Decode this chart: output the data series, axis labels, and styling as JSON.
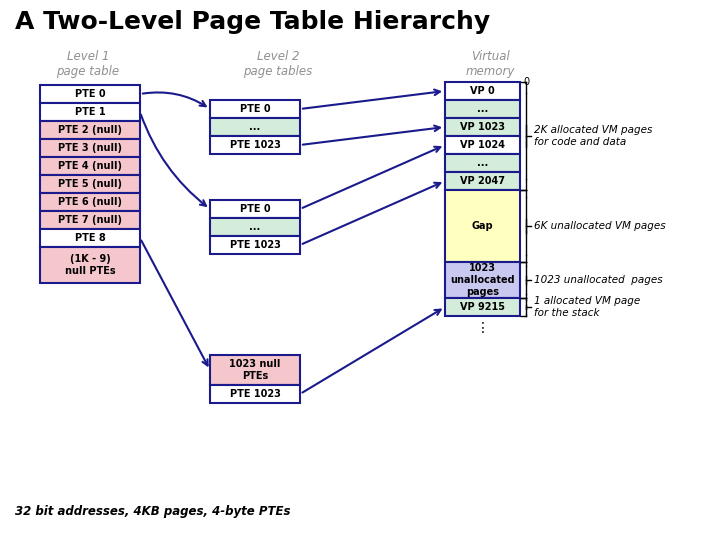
{
  "title": "A Two-Level Page Table Hierarchy",
  "subtitle_l1": "Level 1\npage table",
  "subtitle_l2": "Level 2\npage tables",
  "subtitle_vm": "Virtual\nmemory",
  "footer": "32 bit addresses, 4KB pages, 4-byte PTEs",
  "bg_color": "#ffffff",
  "title_color": "#000000",
  "subtitle_color": "#909090",
  "box_border_color": "#1a1a8c",
  "l1_entries": [
    "PTE 0",
    "PTE 1",
    "PTE 2 (null)",
    "PTE 3 (null)",
    "PTE 4 (null)",
    "PTE 5 (null)",
    "PTE 6 (null)",
    "PTE 7 (null)",
    "PTE 8",
    "(1K - 9)\nnull PTEs"
  ],
  "l1_colors": [
    "#ffffff",
    "#ffffff",
    "#f5c6cb",
    "#f5c6cb",
    "#f5c6cb",
    "#f5c6cb",
    "#f5c6cb",
    "#f5c6cb",
    "#ffffff",
    "#f5c6cb"
  ],
  "l2a_entries": [
    "PTE 0",
    "...",
    "PTE 1023"
  ],
  "l2a_colors": [
    "#ffffff",
    "#d4edda",
    "#ffffff"
  ],
  "l2b_entries": [
    "PTE 0",
    "...",
    "PTE 1023"
  ],
  "l2b_colors": [
    "#ffffff",
    "#d4edda",
    "#ffffff"
  ],
  "l2c_entries": [
    "1023 null\nPTEs",
    "PTE 1023"
  ],
  "l2c_colors": [
    "#f5c6cb",
    "#ffffff"
  ],
  "vm_entries": [
    "VP 0",
    "...",
    "VP 1023",
    "VP 1024",
    "...",
    "VP 2047",
    "Gap",
    "1023\nunallocated\npages",
    "VP 9215"
  ],
  "vm_colors": [
    "#ffffff",
    "#d4edda",
    "#d4edda",
    "#ffffff",
    "#d4edda",
    "#d4edda",
    "#ffffc0",
    "#c8c8f0",
    "#d4edda"
  ],
  "vm_heights": [
    1,
    1,
    1,
    1,
    1,
    1,
    4,
    2,
    1
  ],
  "annotation_2k": "2K allocated VM pages\nfor code and data",
  "annotation_6k": "6K unallocated VM pages",
  "annotation_1023": "1023 unallocated  pages",
  "annotation_stack": "1 allocated VM page\nfor the stack",
  "arrow_color": "#1a1a8c"
}
